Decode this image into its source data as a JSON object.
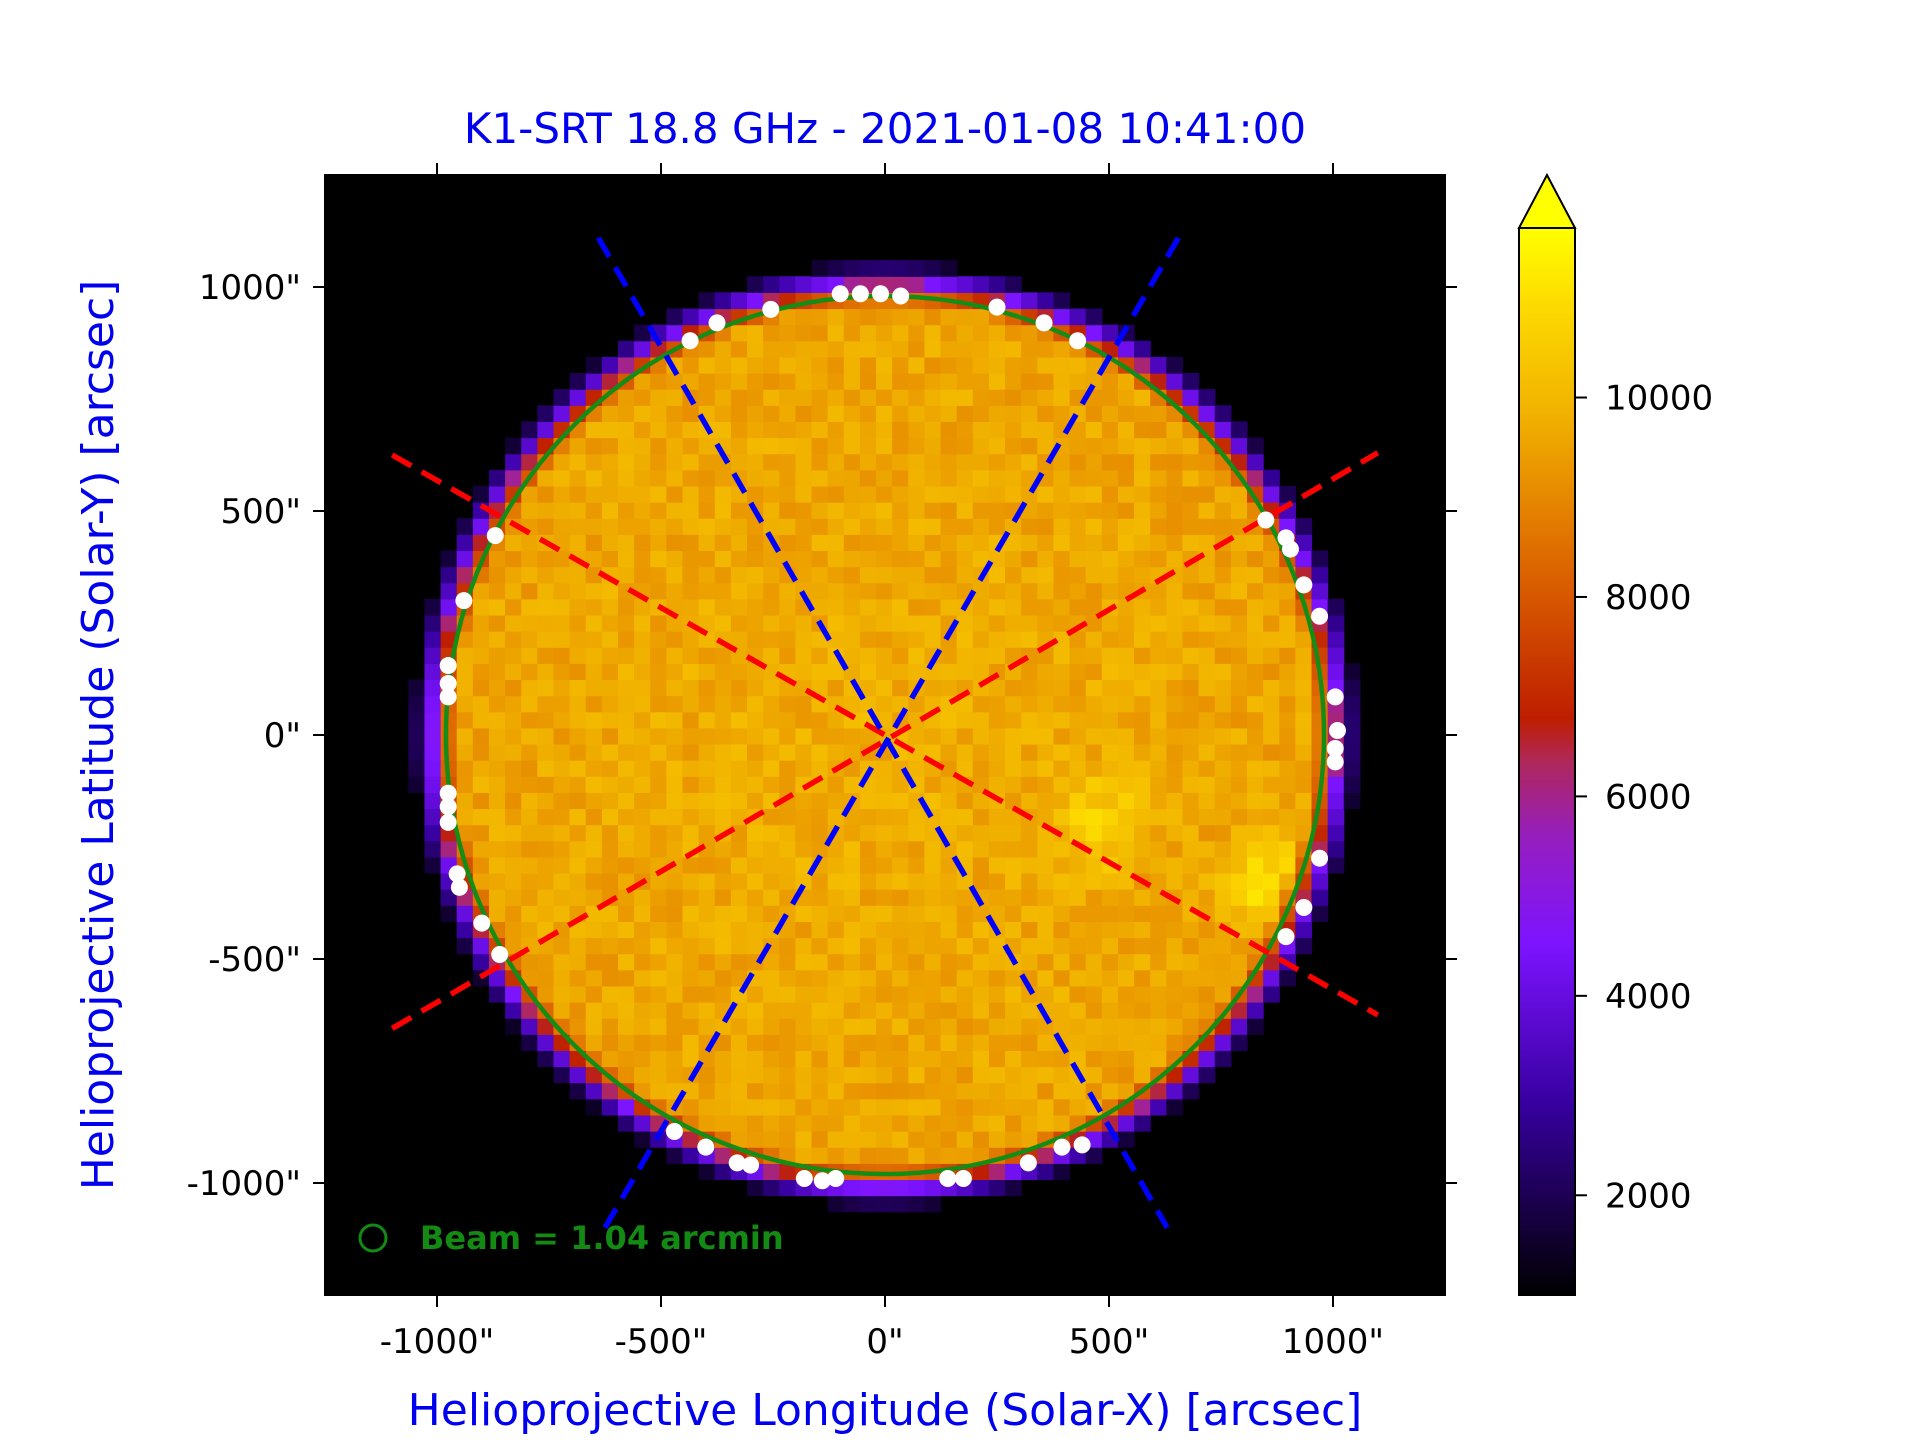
{
  "chart_data": {
    "type": "heatmap",
    "title": "K1-SRT 18.8 GHz - 2021-01-08 10:41:00",
    "xlabel": "Helioprojective Longitude (Solar-X) [arcsec]",
    "ylabel": "Helioprojective Latitude (Solar-Y) [arcsec]",
    "xlim": [
      -1250,
      1250
    ],
    "ylim": [
      -1250,
      1250
    ],
    "x_ticks": [
      -1000,
      -500,
      0,
      500,
      1000
    ],
    "y_ticks": [
      -1000,
      -500,
      0,
      500,
      1000
    ],
    "x_tick_labels": [
      "-1000\"",
      "-500\"",
      "0\"",
      "500\"",
      "1000\""
    ],
    "y_tick_labels": [
      "-1000\"",
      "-500\"",
      "0\"",
      "500\"",
      "1000\""
    ],
    "colorbar": {
      "ticks": [
        2000,
        4000,
        6000,
        8000,
        10000
      ],
      "tick_labels": [
        "2000",
        "4000",
        "6000",
        "8000",
        "10000"
      ],
      "range": [
        1000,
        11700
      ],
      "extend": "max"
    },
    "beam_label": "Beam = 1.04 arcmin",
    "beam_arcmin": 1.04,
    "limb_circle": {
      "center": [
        0,
        0
      ],
      "radius": 980
    },
    "disk_mean_value": 9800,
    "bright_regions": [
      {
        "center": [
          860,
          -330
        ],
        "peak": 11500
      },
      {
        "center": [
          480,
          -200
        ],
        "peak": 10900
      }
    ],
    "lines": {
      "red": [
        {
          "from": [
            -1100,
            625
          ],
          "to": [
            1100,
            -625
          ]
        },
        {
          "from": [
            -1100,
            -655
          ],
          "to": [
            1100,
            630
          ]
        }
      ],
      "blue": [
        {
          "from": [
            -640,
            1110
          ],
          "to": [
            630,
            -1100
          ]
        },
        {
          "from": [
            -625,
            -1100
          ],
          "to": [
            655,
            1110
          ]
        }
      ]
    },
    "limb_points": [
      [
        -100,
        985
      ],
      [
        -55,
        985
      ],
      [
        -10,
        985
      ],
      [
        35,
        980
      ],
      [
        -255,
        950
      ],
      [
        -375,
        920
      ],
      [
        -435,
        880
      ],
      [
        250,
        955
      ],
      [
        355,
        920
      ],
      [
        430,
        880
      ],
      [
        -870,
        445
      ],
      [
        -940,
        300
      ],
      [
        -975,
        155
      ],
      [
        -975,
        115
      ],
      [
        -975,
        85
      ],
      [
        -975,
        -130
      ],
      [
        -975,
        -160
      ],
      [
        -975,
        -195
      ],
      [
        -955,
        -310
      ],
      [
        -950,
        -340
      ],
      [
        -900,
        -420
      ],
      [
        -860,
        -490
      ],
      [
        850,
        480
      ],
      [
        895,
        440
      ],
      [
        905,
        415
      ],
      [
        935,
        335
      ],
      [
        970,
        265
      ],
      [
        1005,
        85
      ],
      [
        1010,
        10
      ],
      [
        1005,
        -30
      ],
      [
        1005,
        -60
      ],
      [
        970,
        -275
      ],
      [
        935,
        -385
      ],
      [
        895,
        -450
      ],
      [
        -470,
        -885
      ],
      [
        -400,
        -920
      ],
      [
        -330,
        -955
      ],
      [
        -300,
        -960
      ],
      [
        -180,
        -990
      ],
      [
        -140,
        -995
      ],
      [
        -110,
        -990
      ],
      [
        140,
        -990
      ],
      [
        175,
        -990
      ],
      [
        320,
        -955
      ],
      [
        395,
        -920
      ],
      [
        440,
        -915
      ]
    ]
  }
}
